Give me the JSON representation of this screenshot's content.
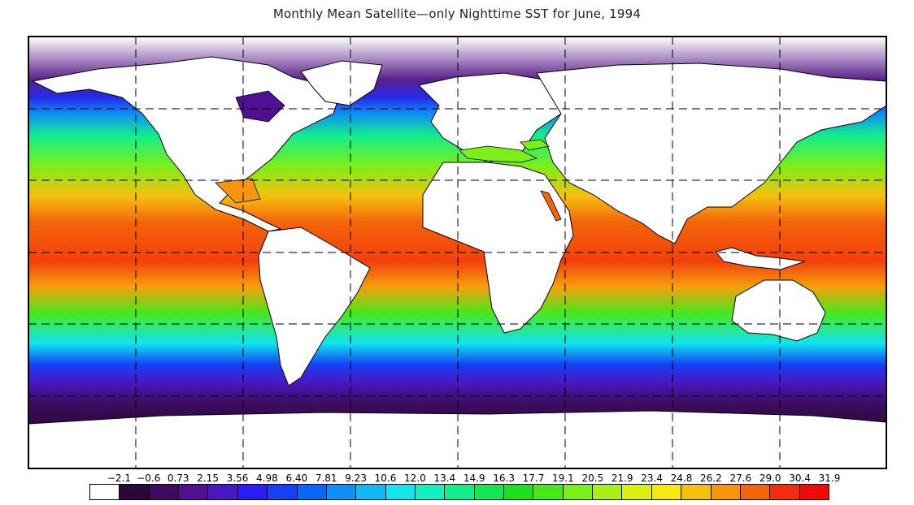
{
  "title": "Monthly Mean Satellite—only Nighttime SST for June, 1994",
  "colorbar": {
    "tick_labels": [
      "−2.1",
      "−0.6",
      "0.73",
      "2.15",
      "3.56",
      "4.98",
      "6.40",
      "7.81",
      "9.23",
      "10.6",
      "12.0",
      "13.4",
      "14.9",
      "16.3",
      "17.7",
      "19.1",
      "20.5",
      "21.9",
      "23.4",
      "24.8",
      "26.2",
      "27.6",
      "29.0",
      "30.4",
      "31.9"
    ],
    "colors": [
      "#ffffff",
      "#2a0838",
      "#3c0c5e",
      "#4f1190",
      "#4a18c2",
      "#2a1cf2",
      "#1540f5",
      "#0a66f6",
      "#0c90f4",
      "#0fbaf2",
      "#10e6ee",
      "#10f2c2",
      "#12ee8c",
      "#14e656",
      "#1ce020",
      "#48e81a",
      "#7cee18",
      "#aaf018",
      "#dcf012",
      "#f6e810",
      "#f6c00e",
      "#f6960c",
      "#f4640a",
      "#f22c0c",
      "#f00a0a"
    ]
  },
  "chart_data": {
    "type": "heatmap",
    "title": "Monthly Mean Satellite—only Nighttime SST for June, 1994",
    "variable": "Sea surface temperature",
    "color_scale_values": [
      -2.1,
      -0.6,
      0.73,
      2.15,
      3.56,
      4.98,
      6.4,
      7.81,
      9.23,
      10.6,
      12.0,
      13.4,
      14.9,
      16.3,
      17.7,
      19.1,
      20.5,
      21.9,
      23.4,
      24.8,
      26.2,
      27.6,
      29.0,
      30.4,
      31.9
    ],
    "land_color": "#ffffff",
    "grid": "dashed"
  }
}
